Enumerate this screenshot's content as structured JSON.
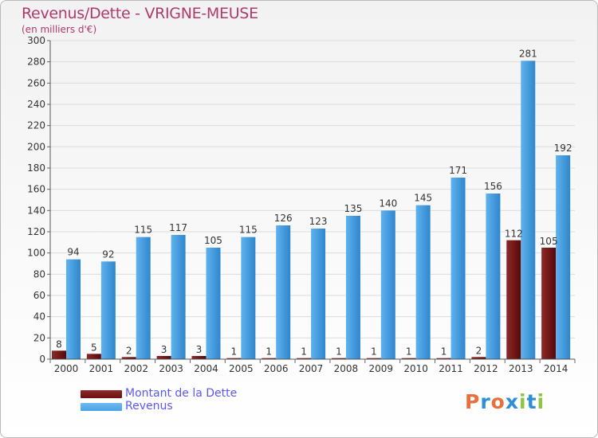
{
  "title": "Revenus/Dette - VRIGNE-MEUSE",
  "subtitle": "(en milliers d'€)",
  "logo": {
    "text": "Proxiti",
    "letters": [
      "P",
      "r",
      "o",
      "x",
      "i",
      "t",
      "i"
    ],
    "colors": [
      "#e8703c",
      "#2d8fd8",
      "#e8703c",
      "#2d8fd8",
      "#8cc63f",
      "#2d8fd8",
      "#8cc63f"
    ]
  },
  "colors": {
    "dette": "#6e0f0f",
    "revenus": "#4aa3e6",
    "title": "#b03a6a",
    "legend_text": "#5a5af0"
  },
  "chart_data": {
    "type": "bar",
    "title": "Revenus/Dette - VRIGNE-MEUSE",
    "ylabel": "(en milliers d'€)",
    "xlabel": "",
    "ylim": [
      0,
      300
    ],
    "yticks": [
      0,
      20,
      40,
      60,
      80,
      100,
      120,
      140,
      160,
      180,
      200,
      220,
      240,
      260,
      280,
      300
    ],
    "grid": true,
    "legend_position": "bottom-left",
    "categories": [
      "2000",
      "2001",
      "2002",
      "2003",
      "2004",
      "2005",
      "2006",
      "2007",
      "2008",
      "2009",
      "2010",
      "2011",
      "2012",
      "2013",
      "2014"
    ],
    "series": [
      {
        "name": "Montant de la Dette",
        "values": [
          8,
          5,
          2,
          3,
          3,
          1,
          1,
          1,
          1,
          1,
          1,
          1,
          2,
          112,
          105
        ]
      },
      {
        "name": "Revenus",
        "values": [
          94,
          92,
          115,
          117,
          105,
          115,
          126,
          123,
          135,
          140,
          145,
          171,
          156,
          281,
          192
        ]
      }
    ]
  }
}
